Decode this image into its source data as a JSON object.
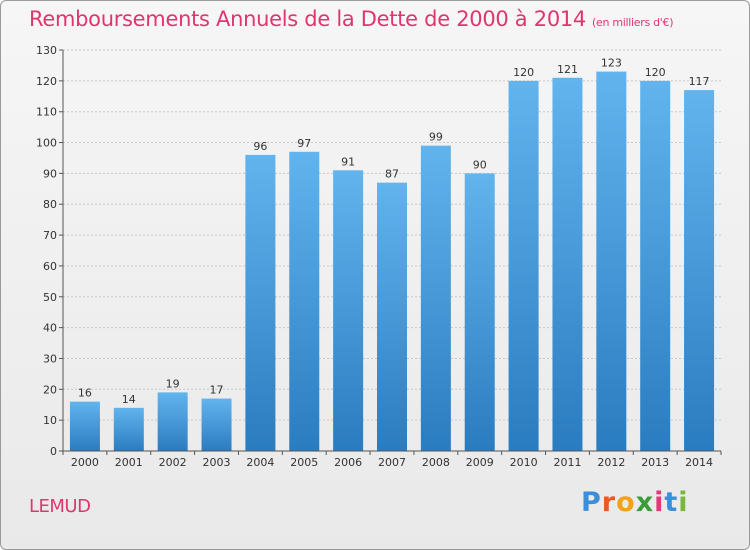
{
  "page": {
    "title": "Remboursements Annuels de la Dette de 2000 à 2014",
    "unit": "(en milliers d'€)",
    "town": "LEMUD",
    "logo_letters": [
      "P",
      "r",
      "o",
      "x",
      "i",
      "t",
      "i"
    ],
    "logo_colors": [
      "#3a8fd9",
      "#e65a2a",
      "#f2a21a",
      "#3a9d3a",
      "#e03a7a",
      "#3a8fd9",
      "#7ab83a"
    ]
  },
  "colors": {
    "title": "#e0356e",
    "bar_light": "#62b4ee",
    "bar_dark": "#2a7cc0",
    "grid": "#c8c8c8",
    "axis": "#555555"
  },
  "chart_data": {
    "type": "bar",
    "title": "Remboursements Annuels de la Dette de 2000 à 2014",
    "ylabel": "en milliers d'€",
    "xlabel": "",
    "categories": [
      "2000",
      "2001",
      "2002",
      "2003",
      "2004",
      "2005",
      "2006",
      "2007",
      "2008",
      "2009",
      "2010",
      "2011",
      "2012",
      "2013",
      "2014"
    ],
    "values": [
      16,
      14,
      19,
      17,
      96,
      97,
      91,
      87,
      99,
      90,
      120,
      121,
      123,
      120,
      117
    ],
    "ylim": [
      0,
      130
    ],
    "yticks": [
      0,
      10,
      20,
      30,
      40,
      50,
      60,
      70,
      80,
      90,
      100,
      110,
      120,
      130
    ],
    "grid": true,
    "data_labels": true
  }
}
